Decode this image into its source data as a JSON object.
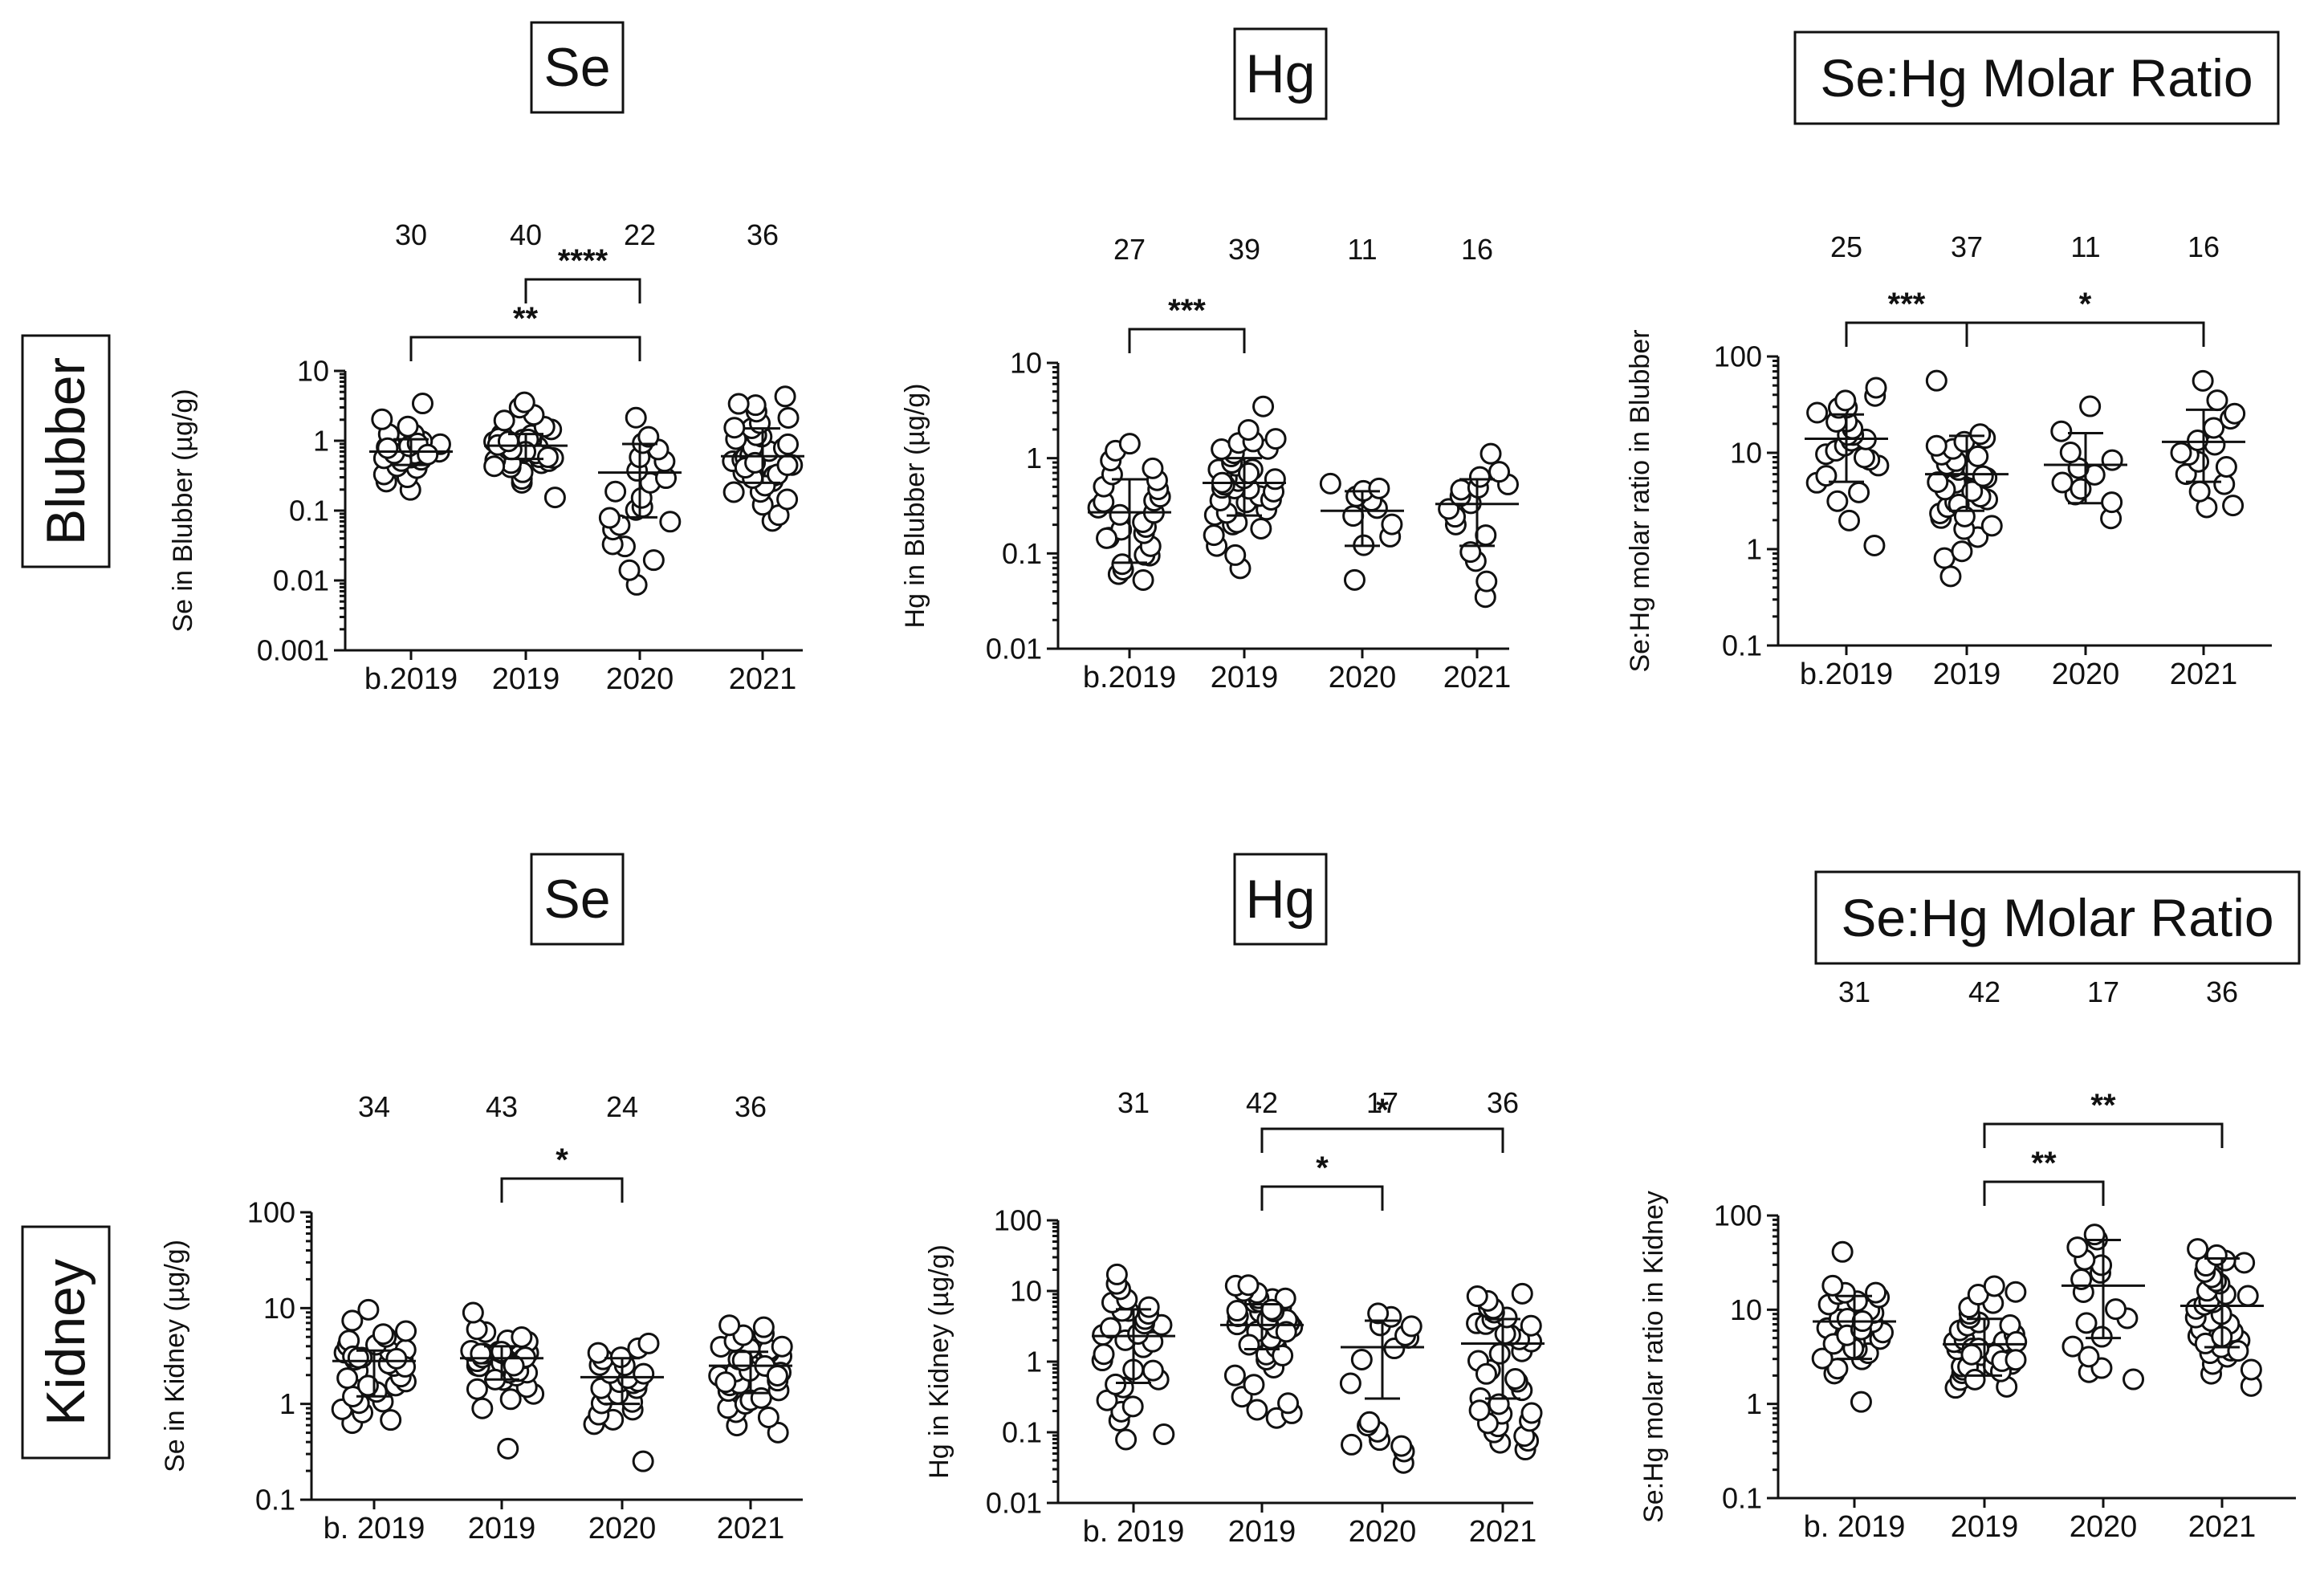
{
  "colors": {
    "ink": "#111111",
    "background": "#ffffff"
  },
  "row_labels": [
    "Blubber",
    "Kidney"
  ],
  "column_titles": [
    "Se",
    "Hg",
    "Se:Hg Molar Ratio"
  ],
  "chart_data": [
    {
      "type": "scatter",
      "row": 0,
      "col": 0,
      "title": "Se",
      "ylabel": "Se in Blubber (µg/g)",
      "yscale": "log",
      "ylim": [
        0.001,
        10
      ],
      "yticks": [
        {
          "value": 0.001,
          "label": "0.001"
        },
        {
          "value": 0.01,
          "label": "0.01"
        },
        {
          "value": 0.1,
          "label": "0.1"
        },
        {
          "value": 1,
          "label": "1"
        },
        {
          "value": 10,
          "label": "10"
        }
      ],
      "categories": [
        "b.2019",
        "2019",
        "2020",
        "2021"
      ],
      "n": [
        "30",
        "40",
        "22",
        "36"
      ],
      "means": [
        0.7,
        0.85,
        0.35,
        0.6
      ],
      "sd": [
        [
          0.45,
          1.05
        ],
        [
          0.55,
          1.25
        ],
        [
          0.08,
          0.9
        ],
        [
          0.25,
          1.5
        ]
      ],
      "points": [
        [
          0.2,
          0.25,
          0.3,
          0.35,
          0.4,
          0.45,
          0.5,
          0.55,
          0.6,
          0.65,
          0.7,
          0.75,
          0.8,
          0.85,
          0.9,
          0.95,
          1.0,
          1.1,
          1.2,
          1.3,
          0.5,
          0.6,
          0.7,
          0.8,
          0.9,
          0.65,
          0.75,
          1.5,
          2.0,
          3.5
        ],
        [
          0.15,
          0.25,
          0.3,
          0.35,
          0.4,
          0.45,
          0.5,
          0.55,
          0.6,
          0.65,
          0.7,
          0.75,
          0.8,
          0.85,
          0.9,
          0.95,
          1.0,
          1.05,
          1.1,
          1.2,
          1.3,
          1.4,
          0.5,
          0.6,
          0.7,
          0.8,
          0.9,
          1.0,
          1.1,
          0.55,
          0.65,
          0.75,
          0.85,
          0.95,
          1.5,
          1.8,
          2.2,
          2.8,
          3.5,
          0.45
        ],
        [
          0.009,
          0.015,
          0.02,
          0.03,
          0.035,
          0.05,
          0.06,
          0.08,
          0.1,
          0.12,
          0.15,
          0.2,
          0.25,
          0.3,
          0.4,
          0.5,
          0.6,
          0.8,
          1.0,
          1.2,
          2.0,
          0.07
        ],
        [
          0.07,
          0.09,
          0.12,
          0.15,
          0.18,
          0.2,
          0.25,
          0.3,
          0.35,
          0.4,
          0.45,
          0.5,
          0.55,
          0.6,
          0.65,
          0.7,
          0.75,
          0.8,
          0.9,
          1.0,
          1.1,
          1.2,
          1.4,
          1.6,
          1.8,
          2.0,
          2.5,
          3.0,
          3.5,
          4.0,
          0.22,
          0.28,
          0.33,
          0.42,
          0.48,
          0.52
        ]
      ],
      "brackets": [
        {
          "from": 0,
          "to": 2,
          "label": "**",
          "level": 0
        },
        {
          "from": 1,
          "to": 2,
          "label": "****",
          "level": 1
        }
      ]
    },
    {
      "type": "scatter",
      "row": 0,
      "col": 1,
      "title": "Hg",
      "ylabel": "Hg in Blubber (µg/g)",
      "yscale": "log",
      "ylim": [
        0.01,
        10
      ],
      "yticks": [
        {
          "value": 0.01,
          "label": "0.01"
        },
        {
          "value": 0.1,
          "label": "0.1"
        },
        {
          "value": 1,
          "label": "1"
        },
        {
          "value": 10,
          "label": "10"
        }
      ],
      "categories": [
        "b.2019",
        "2019",
        "2020",
        "2021"
      ],
      "n": [
        "27",
        "39",
        "11",
        "16"
      ],
      "means": [
        0.27,
        0.55,
        0.28,
        0.33
      ],
      "sd": [
        [
          0.08,
          0.6
        ],
        [
          0.25,
          1.0
        ],
        [
          0.12,
          0.45
        ],
        [
          0.12,
          0.6
        ]
      ],
      "points": [
        [
          0.05,
          0.06,
          0.07,
          0.08,
          0.09,
          0.1,
          0.12,
          0.14,
          0.16,
          0.18,
          0.2,
          0.22,
          0.25,
          0.28,
          0.3,
          0.33,
          0.35,
          0.4,
          0.45,
          0.5,
          0.6,
          0.7,
          0.8,
          1.0,
          1.2,
          1.4,
          0.15
        ],
        [
          0.07,
          0.1,
          0.12,
          0.15,
          0.18,
          0.2,
          0.22,
          0.25,
          0.28,
          0.3,
          0.33,
          0.35,
          0.4,
          0.45,
          0.5,
          0.55,
          0.6,
          0.65,
          0.7,
          0.75,
          0.8,
          0.85,
          0.9,
          1.0,
          1.1,
          1.2,
          1.3,
          1.4,
          1.5,
          1.6,
          0.38,
          0.42,
          0.48,
          0.52,
          0.58,
          0.62,
          0.68,
          2.0,
          3.3
        ],
        [
          0.055,
          0.12,
          0.15,
          0.2,
          0.25,
          0.3,
          0.35,
          0.4,
          0.45,
          0.5,
          0.55
        ],
        [
          0.035,
          0.05,
          0.08,
          0.1,
          0.15,
          0.2,
          0.25,
          0.3,
          0.35,
          0.4,
          0.45,
          0.5,
          0.55,
          0.6,
          0.7,
          1.05
        ]
      ],
      "brackets": [
        {
          "from": 0,
          "to": 1,
          "label": "***",
          "level": 0
        }
      ]
    },
    {
      "type": "scatter",
      "row": 0,
      "col": 2,
      "title": "Se:Hg Molar Ratio",
      "ylabel": "Se:Hg molar ratio in Blubber",
      "yscale": "log",
      "ylim": [
        0.1,
        100
      ],
      "yticks": [
        {
          "value": 0.1,
          "label": "0.1"
        },
        {
          "value": 1,
          "label": "1"
        },
        {
          "value": 10,
          "label": "10"
        },
        {
          "value": 100,
          "label": "100"
        }
      ],
      "categories": [
        "b.2019",
        "2019",
        "2020",
        "2021"
      ],
      "n": [
        "25",
        "37",
        "11",
        "16"
      ],
      "means": [
        14,
        6,
        7.5,
        13
      ],
      "sd": [
        [
          5,
          25
        ],
        [
          2.5,
          15
        ],
        [
          3,
          16
        ],
        [
          5,
          28
        ]
      ],
      "points": [
        [
          1.1,
          2.0,
          3.0,
          4.0,
          5.0,
          6.0,
          7.0,
          8.0,
          9.0,
          10,
          11,
          12,
          13,
          14,
          15,
          16,
          18,
          20,
          22,
          25,
          28,
          30,
          35,
          40,
          48
        ],
        [
          0.5,
          0.8,
          1.0,
          1.3,
          1.6,
          2.0,
          2.3,
          2.6,
          3.0,
          3.3,
          3.6,
          4.0,
          4.5,
          5.0,
          5.5,
          6.0,
          6.5,
          7.0,
          7.5,
          8.0,
          8.5,
          9.0,
          10,
          11,
          12,
          13,
          14,
          15,
          3.8,
          4.2,
          4.8,
          5.2,
          5.8,
          2.8,
          2.2,
          1.8,
          55
        ],
        [
          2.0,
          3.0,
          3.5,
          4.0,
          5.0,
          6.0,
          7.0,
          8.0,
          10,
          16,
          32
        ],
        [
          2.8,
          3.0,
          4.0,
          5.0,
          6.0,
          7.0,
          8.0,
          9.0,
          10,
          12,
          14,
          18,
          22,
          25,
          35,
          55
        ]
      ],
      "brackets": [
        {
          "from": 0,
          "to": 1,
          "label": "***",
          "level": 0
        },
        {
          "from": 1,
          "to": 3,
          "label": "*",
          "level": 0
        }
      ]
    },
    {
      "type": "scatter",
      "row": 1,
      "col": 0,
      "title": "Se",
      "ylabel": "Se in Kidney (µg/g)",
      "yscale": "log",
      "ylim": [
        0.1,
        100
      ],
      "yticks": [
        {
          "value": 0.1,
          "label": "0.1"
        },
        {
          "value": 1,
          "label": "1"
        },
        {
          "value": 10,
          "label": "10"
        },
        {
          "value": 100,
          "label": "100"
        }
      ],
      "categories": [
        "b. 2019",
        "2019",
        "2020",
        "2021"
      ],
      "n": [
        "34",
        "43",
        "24",
        "36"
      ],
      "means": [
        2.8,
        3.0,
        1.9,
        2.5
      ],
      "sd": [
        [
          1.2,
          3.6
        ],
        [
          1.8,
          4.0
        ],
        [
          1.0,
          3.0
        ],
        [
          1.3,
          3.5
        ]
      ],
      "points": [
        [
          0.6,
          0.7,
          0.8,
          0.9,
          1.0,
          1.1,
          1.2,
          1.4,
          1.6,
          1.8,
          2.0,
          2.2,
          2.4,
          2.6,
          2.8,
          3.0,
          3.2,
          3.4,
          3.6,
          3.8,
          4.0,
          4.2,
          4.5,
          5.0,
          5.5,
          6.0,
          7.0,
          9.5,
          2.5,
          2.9,
          3.3,
          1.5,
          1.9,
          3.1
        ],
        [
          0.35,
          0.9,
          1.2,
          1.5,
          1.7,
          1.9,
          2.0,
          2.2,
          2.4,
          2.5,
          2.6,
          2.7,
          2.8,
          2.9,
          3.0,
          3.1,
          3.2,
          3.3,
          3.4,
          3.5,
          3.6,
          3.7,
          3.8,
          3.9,
          4.0,
          4.2,
          4.4,
          4.6,
          5.0,
          5.5,
          6.0,
          8.5,
          2.1,
          2.3,
          3.05,
          3.15,
          3.25,
          3.45,
          3.55,
          2.65,
          1.8,
          1.4,
          1.1
        ],
        [
          0.25,
          0.6,
          0.7,
          0.8,
          0.9,
          1.0,
          1.1,
          1.2,
          1.3,
          1.4,
          1.5,
          1.6,
          1.7,
          1.8,
          1.9,
          2.0,
          2.2,
          2.4,
          2.6,
          2.8,
          3.0,
          3.5,
          4.0,
          4.5
        ],
        [
          0.5,
          0.6,
          0.7,
          0.8,
          0.9,
          1.0,
          1.1,
          1.2,
          1.3,
          1.4,
          1.5,
          1.6,
          1.8,
          2.0,
          2.2,
          2.4,
          2.6,
          2.8,
          3.0,
          3.2,
          3.4,
          3.6,
          3.8,
          4.0,
          4.2,
          4.5,
          5.0,
          5.5,
          6.0,
          6.5,
          2.1,
          2.3,
          2.5,
          1.7,
          1.9,
          2.7
        ]
      ],
      "brackets": [
        {
          "from": 1,
          "to": 2,
          "label": "*",
          "level": 0
        }
      ]
    },
    {
      "type": "scatter",
      "row": 1,
      "col": 1,
      "title": "Hg",
      "ylabel": "Hg in Kidney (µg/g)",
      "yscale": "log",
      "ylim": [
        0.01,
        100
      ],
      "yticks": [
        {
          "value": 0.01,
          "label": "0.01"
        },
        {
          "value": 0.1,
          "label": "0.1"
        },
        {
          "value": 1,
          "label": "1"
        },
        {
          "value": 10,
          "label": "10"
        },
        {
          "value": 100,
          "label": "100"
        }
      ],
      "categories": [
        "b. 2019",
        "2019",
        "2020",
        "2021"
      ],
      "n": [
        "31",
        "42",
        "17",
        "36"
      ],
      "means": [
        2.3,
        3.3,
        1.6,
        1.8
      ],
      "sd": [
        [
          0.5,
          5.5
        ],
        [
          1.5,
          6.5
        ],
        [
          0.3,
          3.8
        ],
        [
          0.3,
          4.0
        ]
      ],
      "points": [
        [
          0.08,
          0.1,
          0.15,
          0.2,
          0.25,
          0.3,
          0.4,
          0.5,
          0.6,
          0.7,
          0.8,
          1.0,
          1.2,
          1.5,
          1.8,
          2.0,
          2.3,
          2.6,
          3.0,
          3.3,
          3.6,
          4.0,
          4.5,
          5.0,
          5.5,
          6.0,
          7.0,
          8.0,
          10,
          12,
          18
        ],
        [
          0.15,
          0.18,
          0.3,
          0.5,
          0.8,
          1.0,
          1.3,
          1.6,
          2.0,
          2.3,
          2.6,
          3.0,
          3.3,
          3.6,
          4.0,
          4.3,
          4.6,
          5.0,
          5.3,
          5.6,
          6.0,
          6.5,
          7.0,
          7.5,
          8.0,
          8.5,
          9.0,
          10,
          11,
          12,
          2.8,
          3.2,
          3.8,
          4.2,
          4.8,
          5.2,
          2.5,
          1.8,
          1.2,
          0.6,
          0.25,
          0.2
        ],
        [
          0.035,
          0.05,
          0.06,
          0.08,
          0.1,
          0.12,
          0.15,
          0.5,
          1.0,
          1.5,
          2.0,
          2.5,
          3.0,
          3.5,
          4.0,
          5.0,
          0.07
        ],
        [
          0.06,
          0.07,
          0.08,
          0.09,
          0.1,
          0.12,
          0.15,
          0.18,
          0.2,
          0.25,
          0.3,
          0.4,
          0.5,
          0.6,
          0.8,
          1.0,
          1.2,
          1.5,
          1.8,
          2.0,
          2.3,
          2.6,
          3.0,
          3.3,
          3.6,
          4.0,
          4.5,
          5.0,
          5.5,
          6.0,
          7.0,
          8.0,
          9.0,
          0.13,
          0.22,
          0.7
        ]
      ],
      "brackets": [
        {
          "from": 1,
          "to": 2,
          "label": "*",
          "level": 0
        },
        {
          "from": 1,
          "to": 3,
          "label": "*",
          "level": 1
        }
      ]
    },
    {
      "type": "scatter",
      "row": 1,
      "col": 2,
      "title": "Se:Hg Molar Ratio",
      "ylabel": "Se:Hg molar ratio in Kidney",
      "yscale": "log",
      "ylim": [
        0.1,
        100
      ],
      "yticks": [
        {
          "value": 0.1,
          "label": "0.1"
        },
        {
          "value": 1,
          "label": "1"
        },
        {
          "value": 10,
          "label": "10"
        },
        {
          "value": 100,
          "label": "100"
        }
      ],
      "categories": [
        "b. 2019",
        "2019",
        "2020",
        "2021"
      ],
      "n": [
        "31",
        "42",
        "17",
        "36"
      ],
      "means": [
        7.5,
        4.3,
        18,
        11
      ],
      "sd": [
        [
          3,
          14
        ],
        [
          2,
          8
        ],
        [
          5,
          55
        ],
        [
          4,
          35
        ]
      ],
      "points": [
        [
          1.0,
          2.0,
          2.5,
          3.0,
          3.5,
          4.0,
          4.5,
          5.0,
          5.5,
          6.0,
          6.5,
          7.0,
          7.5,
          8.0,
          8.5,
          9.0,
          10,
          11,
          12,
          13,
          14,
          15,
          16,
          17,
          3.2,
          3.8,
          4.2,
          5.2,
          6.2,
          7.2,
          42
        ],
        [
          1.4,
          1.6,
          1.8,
          2.0,
          2.2,
          2.4,
          2.6,
          2.8,
          3.0,
          3.2,
          3.4,
          3.6,
          3.8,
          4.0,
          4.2,
          4.4,
          4.6,
          4.8,
          5.0,
          5.5,
          6.0,
          6.5,
          7.0,
          7.5,
          8.0,
          9.0,
          10,
          12,
          14,
          16,
          18,
          2.5,
          2.9,
          3.3,
          3.7,
          4.1,
          4.5,
          2.3,
          2.7,
          3.1,
          3.5,
          1.9
        ],
        [
          1.8,
          2.2,
          2.5,
          3.0,
          4.0,
          5.0,
          7.0,
          8.0,
          10,
          15,
          20,
          25,
          30,
          35,
          45,
          55,
          65
        ],
        [
          1.6,
          2.0,
          2.3,
          2.6,
          3.0,
          3.3,
          3.6,
          4.0,
          4.5,
          5.0,
          5.5,
          6.0,
          6.5,
          7.0,
          7.5,
          8.0,
          9.0,
          10,
          11,
          12,
          13,
          14,
          15,
          16,
          18,
          20,
          22,
          25,
          28,
          30,
          35,
          40,
          45,
          3.8,
          4.3,
          5.2
        ]
      ],
      "brackets": [
        {
          "from": 1,
          "to": 2,
          "label": "**",
          "level": 0
        },
        {
          "from": 1,
          "to": 3,
          "label": "**",
          "level": 1
        }
      ]
    }
  ]
}
